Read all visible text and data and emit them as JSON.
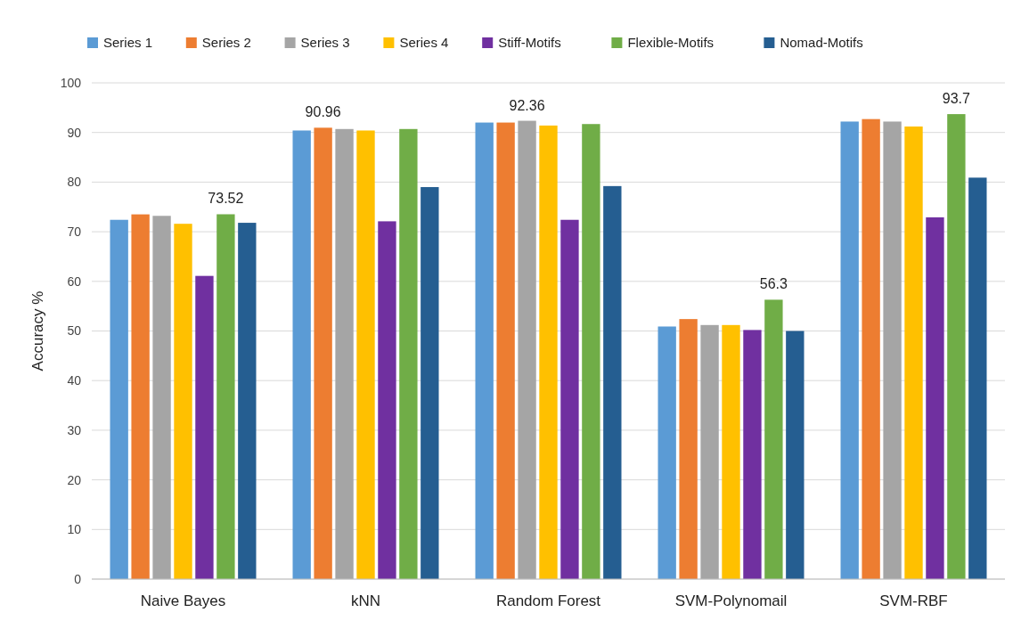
{
  "chart_data": {
    "type": "bar",
    "ylabel": "Accuracy %",
    "categories": [
      "Naive Bayes",
      "kNN",
      "Random Forest",
      "SVM-Polynomail",
      "SVM-RBF"
    ],
    "series": [
      {
        "name": "Series 1",
        "color": "#5b9bd5",
        "values": [
          72.4,
          90.4,
          92.0,
          50.9,
          92.2
        ]
      },
      {
        "name": "Series 2",
        "color": "#ed7d31",
        "values": [
          73.5,
          90.96,
          92.0,
          52.4,
          92.7
        ],
        "value_labels": [
          null,
          "90.96",
          null,
          null,
          null
        ]
      },
      {
        "name": "Series 3",
        "color": "#a5a5a5",
        "values": [
          73.2,
          90.7,
          92.36,
          51.2,
          92.2
        ],
        "value_labels": [
          null,
          null,
          "92.36",
          null,
          null
        ]
      },
      {
        "name": "Series 4",
        "color": "#ffc000",
        "values": [
          71.6,
          90.4,
          91.4,
          51.2,
          91.2
        ]
      },
      {
        "name": "Stiff-Motifs",
        "color": "#7030a0",
        "values": [
          61.1,
          72.1,
          72.4,
          50.2,
          72.9
        ]
      },
      {
        "name": "Flexible-Motifs",
        "color": "#70ad47",
        "values": [
          73.52,
          90.7,
          91.7,
          56.3,
          93.7
        ],
        "value_labels": [
          "73.52",
          null,
          null,
          "56.3",
          "93.7"
        ]
      },
      {
        "name": "Nomad-Motifs",
        "color": "#255e91",
        "values": [
          71.8,
          79.0,
          79.2,
          50.0,
          80.9
        ]
      }
    ],
    "ylim": [
      0,
      100
    ],
    "yticks": [
      0,
      10,
      20,
      30,
      40,
      50,
      60,
      70,
      80,
      90,
      100
    ],
    "grid": "y",
    "legend": "top left"
  }
}
